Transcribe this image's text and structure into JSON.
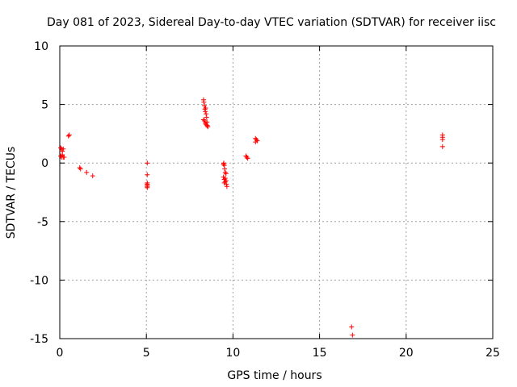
{
  "chart_data": {
    "type": "scatter",
    "title": "Day 081 of 2023, Sidereal Day-to-day VTEC variation (SDTVAR) for receiver iisc",
    "xlabel": "GPS time / hours",
    "ylabel": "SDTVAR / TECUs",
    "xlim": [
      0,
      25
    ],
    "ylim": [
      -15,
      10
    ],
    "xticks": [
      "0",
      "5",
      "10",
      "15",
      "20",
      "25"
    ],
    "xtick_values": [
      0,
      5,
      10,
      15,
      20,
      25
    ],
    "yticks": [
      "10",
      "5",
      "0",
      "-5",
      "-10",
      "-15"
    ],
    "ytick_values": [
      10,
      5,
      0,
      -5,
      -10,
      -15
    ],
    "grid": true,
    "marker": "plus",
    "color": "#ff0000",
    "series": [
      {
        "name": "SDTVAR",
        "x": [
          0.05,
          0.1,
          0.15,
          0.2,
          0.05,
          0.1,
          0.15,
          0.2,
          0.25,
          0.5,
          0.55,
          1.15,
          1.2,
          1.55,
          1.9,
          5.05,
          5.05,
          5.05,
          5.05,
          5.05,
          5.05,
          5.05,
          8.3,
          8.32,
          8.35,
          8.38,
          8.4,
          8.42,
          8.45,
          8.48,
          8.5,
          8.52,
          8.3,
          8.35,
          8.4,
          8.45,
          8.5,
          8.55,
          9.45,
          9.47,
          9.5,
          9.52,
          9.55,
          9.45,
          9.5,
          9.55,
          9.6,
          9.62,
          9.65,
          9.5,
          9.55,
          9.6,
          10.75,
          10.8,
          10.85,
          11.3,
          11.35,
          11.4,
          11.3,
          16.85,
          16.9,
          22.1,
          22.1,
          22.1,
          22.1
        ],
        "y": [
          1.3,
          1.2,
          1.0,
          1.2,
          0.6,
          0.5,
          0.7,
          0.5,
          0.5,
          2.3,
          2.4,
          -0.4,
          -0.5,
          -0.8,
          -1.1,
          0.0,
          -1.0,
          -1.7,
          -1.8,
          -2.0,
          -1.9,
          -2.1,
          5.4,
          5.2,
          4.9,
          4.6,
          4.4,
          4.7,
          4.2,
          3.9,
          3.5,
          3.2,
          3.7,
          3.6,
          3.4,
          3.3,
          3.2,
          3.1,
          -0.1,
          0.0,
          -0.2,
          -0.5,
          -0.8,
          -1.2,
          -1.4,
          -1.6,
          -1.5,
          -1.8,
          -2.0,
          -1.7,
          -1.3,
          -0.9,
          0.6,
          0.5,
          0.4,
          1.8,
          2.0,
          1.9,
          2.1,
          -14.0,
          -14.7,
          2.4,
          2.2,
          2.0,
          1.4
        ]
      }
    ]
  }
}
